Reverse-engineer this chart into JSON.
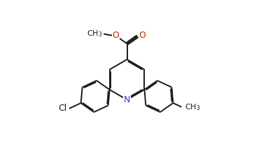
{
  "bg_color": "#ffffff",
  "line_color": "#1a1a1a",
  "n_color": "#2244bb",
  "o_color": "#cc2200",
  "lw": 1.4,
  "do": 0.015,
  "figsize": [
    3.63,
    2.17
  ],
  "dpi": 100,
  "xlim": [
    -1.1,
    1.1
  ],
  "ylim": [
    -1.05,
    1.05
  ],
  "py_r": 0.28,
  "ph_r": 0.22
}
